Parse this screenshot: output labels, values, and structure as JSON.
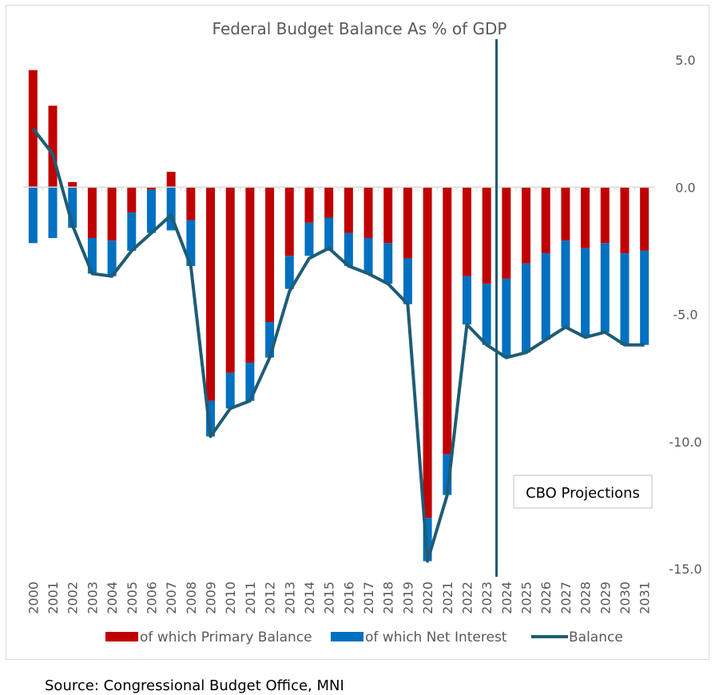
{
  "source_note": "Source: Congressional Budget Office, MNI",
  "annotation": {
    "projection_label": "CBO Projections",
    "projection_start_after": "2023"
  },
  "colors": {
    "primary": "#c00000",
    "interest": "#0070c0",
    "balance": "#1f5c75"
  },
  "chart_data": {
    "type": "bar",
    "title": "Federal Budget Balance As % of GDP",
    "categories": [
      "2000",
      "2001",
      "2002",
      "2003",
      "2004",
      "2005",
      "2006",
      "2007",
      "2008",
      "2009",
      "2010",
      "2011",
      "2012",
      "2013",
      "2014",
      "2015",
      "2016",
      "2017",
      "2018",
      "2019",
      "2020",
      "2021",
      "2022",
      "2023",
      "2024",
      "2025",
      "2026",
      "2027",
      "2028",
      "2029",
      "2030",
      "2031"
    ],
    "ylim": [
      -15,
      5
    ],
    "yticks": [
      5,
      0,
      -5,
      -10,
      -15
    ],
    "ytick_labels": [
      "5.0",
      "0.0",
      "-5.0",
      "-10.0",
      "-15.0"
    ],
    "series": [
      {
        "name": "of which Primary Balance",
        "kind": "bar",
        "values": [
          4.6,
          3.2,
          0.2,
          -2.0,
          -2.1,
          -1.0,
          -0.1,
          0.6,
          -1.3,
          -8.4,
          -7.3,
          -6.9,
          -5.3,
          -2.7,
          -1.4,
          -1.2,
          -1.8,
          -2.0,
          -2.2,
          -2.8,
          -13.0,
          -10.5,
          -3.5,
          -3.8,
          -3.6,
          -3.0,
          -2.6,
          -2.1,
          -2.4,
          -2.2,
          -2.6,
          -2.5
        ]
      },
      {
        "name": "of which Net Interest",
        "kind": "bar",
        "values": [
          -2.2,
          -2.0,
          -1.6,
          -1.4,
          -1.4,
          -1.5,
          -1.7,
          -1.7,
          -1.8,
          -1.4,
          -1.4,
          -1.5,
          -1.4,
          -1.3,
          -1.3,
          -1.3,
          -1.3,
          -1.4,
          -1.6,
          -1.8,
          -1.7,
          -1.6,
          -1.9,
          -2.4,
          -3.1,
          -3.5,
          -3.4,
          -3.4,
          -3.5,
          -3.5,
          -3.6,
          -3.7
        ]
      },
      {
        "name": "Balance",
        "kind": "line",
        "values": [
          2.3,
          1.3,
          -1.5,
          -3.4,
          -3.5,
          -2.5,
          -1.8,
          -1.1,
          -3.1,
          -9.8,
          -8.7,
          -8.4,
          -6.7,
          -4.1,
          -2.8,
          -2.4,
          -3.1,
          -3.4,
          -3.8,
          -4.6,
          -14.7,
          -12.1,
          -5.4,
          -6.2,
          -6.7,
          -6.5,
          -6.0,
          -5.5,
          -5.9,
          -5.7,
          -6.2,
          -6.2
        ]
      }
    ]
  }
}
